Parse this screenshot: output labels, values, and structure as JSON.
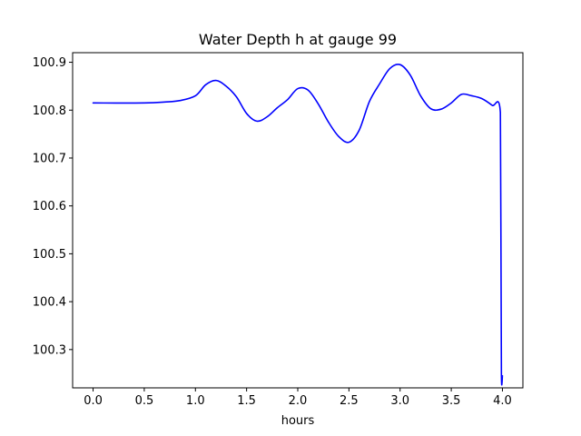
{
  "chart_data": {
    "type": "line",
    "title": "Water Depth h at gauge 99",
    "xlabel": "hours",
    "ylabel": "",
    "xlim": [
      -0.2,
      4.2
    ],
    "ylim": [
      100.22,
      100.92
    ],
    "xticks": [
      0.0,
      0.5,
      1.0,
      1.5,
      2.0,
      2.5,
      3.0,
      3.5,
      4.0
    ],
    "xtick_labels": [
      "0.0",
      "0.5",
      "1.0",
      "1.5",
      "2.0",
      "2.5",
      "3.0",
      "3.5",
      "4.0"
    ],
    "yticks": [
      100.3,
      100.4,
      100.5,
      100.6,
      100.7,
      100.8,
      100.9
    ],
    "ytick_labels": [
      "100.3",
      "100.4",
      "100.5",
      "100.6",
      "100.7",
      "100.8",
      "100.9"
    ],
    "grid": false,
    "legend": "none",
    "series": [
      {
        "color": "#0000ff",
        "x": [
          0.0,
          0.5,
          0.7,
          0.85,
          1.0,
          1.1,
          1.2,
          1.3,
          1.4,
          1.5,
          1.6,
          1.7,
          1.8,
          1.9,
          2.0,
          2.1,
          2.2,
          2.3,
          2.4,
          2.5,
          2.6,
          2.7,
          2.8,
          2.9,
          3.0,
          3.1,
          3.2,
          3.3,
          3.4,
          3.5,
          3.6,
          3.7,
          3.8,
          3.9,
          3.98,
          3.985,
          3.99,
          4.0
        ],
        "y": [
          100.815,
          100.815,
          100.817,
          100.82,
          100.83,
          100.853,
          100.862,
          100.85,
          100.828,
          100.793,
          100.777,
          100.786,
          100.805,
          100.822,
          100.845,
          100.842,
          100.813,
          100.775,
          100.745,
          100.733,
          100.758,
          100.818,
          100.855,
          100.887,
          100.895,
          100.873,
          100.83,
          100.803,
          100.802,
          100.815,
          100.833,
          100.83,
          100.824,
          100.81,
          100.795,
          100.55,
          100.25,
          100.245
        ]
      }
    ]
  }
}
